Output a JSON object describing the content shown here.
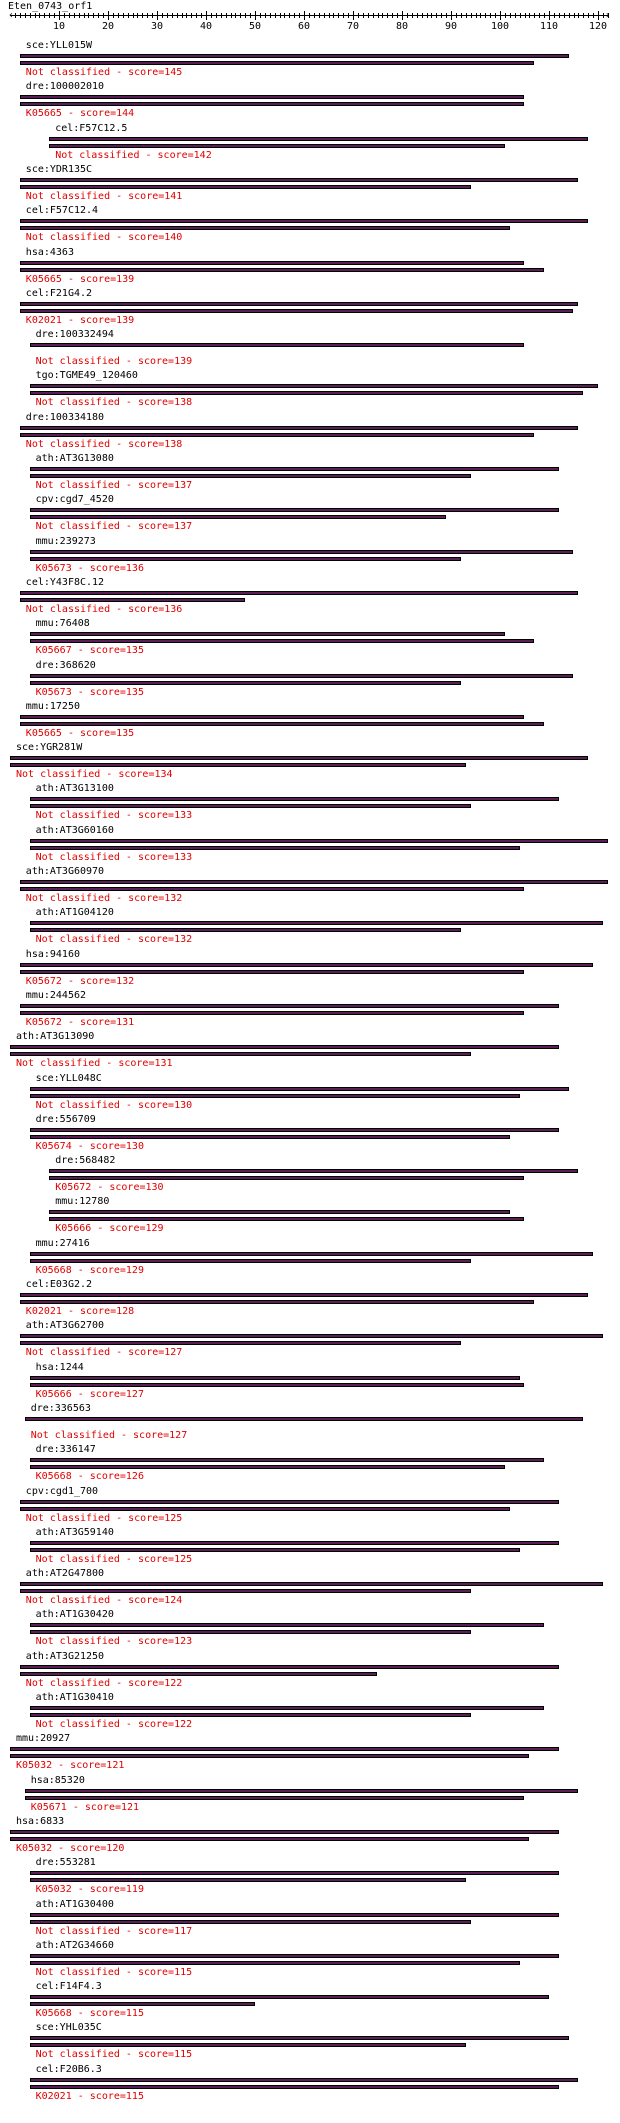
{
  "title": "Eten_0743_orf1",
  "axis": {
    "min": 1,
    "max": 122,
    "labels": [
      10,
      20,
      30,
      40,
      50,
      60,
      70,
      80,
      90,
      100,
      110,
      120
    ]
  },
  "colors": {
    "bar": "#5a1f55",
    "label": "#000000",
    "classification": "#e00000"
  },
  "hits": [
    {
      "name": "sce:YLL015W",
      "class": "Not classified - score=145",
      "indent": 2,
      "bars": [
        [
          2,
          114
        ],
        [
          2,
          107
        ]
      ]
    },
    {
      "name": "dre:100002010",
      "class": "K05665 - score=144",
      "indent": 2,
      "bars": [
        [
          2,
          105
        ],
        [
          2,
          105
        ]
      ]
    },
    {
      "name": "cel:F57C12.5",
      "class": "Not classified - score=142",
      "indent": 8,
      "bars": [
        [
          8,
          118
        ],
        [
          8,
          101
        ]
      ]
    },
    {
      "name": "sce:YDR135C",
      "class": "Not classified - score=141",
      "indent": 2,
      "bars": [
        [
          2,
          116
        ],
        [
          2,
          94
        ]
      ]
    },
    {
      "name": "cel:F57C12.4",
      "class": "Not classified - score=140",
      "indent": 2,
      "bars": [
        [
          2,
          118
        ],
        [
          2,
          102
        ]
      ]
    },
    {
      "name": "hsa:4363",
      "class": "K05665 - score=139",
      "indent": 2,
      "bars": [
        [
          2,
          105
        ],
        [
          2,
          109
        ]
      ]
    },
    {
      "name": "cel:F21G4.2",
      "class": "K02021 - score=139",
      "indent": 2,
      "bars": [
        [
          2,
          116
        ],
        [
          2,
          115
        ]
      ]
    },
    {
      "name": "dre:100332494",
      "class": "Not classified - score=139",
      "indent": 4,
      "bars": [
        [
          4,
          105
        ]
      ]
    },
    {
      "name": "tgo:TGME49_120460",
      "class": "Not classified - score=138",
      "indent": 4,
      "bars": [
        [
          4,
          120
        ],
        [
          4,
          117
        ]
      ]
    },
    {
      "name": "dre:100334180",
      "class": "Not classified - score=138",
      "indent": 2,
      "bars": [
        [
          2,
          116
        ],
        [
          2,
          107
        ]
      ]
    },
    {
      "name": "ath:AT3G13080",
      "class": "Not classified - score=137",
      "indent": 4,
      "bars": [
        [
          4,
          112
        ],
        [
          4,
          94
        ]
      ]
    },
    {
      "name": "cpv:cgd7_4520",
      "class": "Not classified - score=137",
      "indent": 4,
      "bars": [
        [
          4,
          112
        ],
        [
          4,
          89
        ]
      ]
    },
    {
      "name": "mmu:239273",
      "class": "K05673 - score=136",
      "indent": 4,
      "bars": [
        [
          4,
          115
        ],
        [
          4,
          92
        ]
      ]
    },
    {
      "name": "cel:Y43F8C.12",
      "class": "Not classified - score=136",
      "indent": 2,
      "bars": [
        [
          2,
          116
        ],
        [
          2,
          48
        ]
      ]
    },
    {
      "name": "mmu:76408",
      "class": "K05667 - score=135",
      "indent": 4,
      "bars": [
        [
          4,
          101
        ],
        [
          4,
          107
        ]
      ]
    },
    {
      "name": "dre:368620",
      "class": "K05673 - score=135",
      "indent": 4,
      "bars": [
        [
          4,
          115
        ],
        [
          4,
          92
        ]
      ]
    },
    {
      "name": "mmu:17250",
      "class": "K05665 - score=135",
      "indent": 2,
      "bars": [
        [
          2,
          105
        ],
        [
          2,
          109
        ]
      ]
    },
    {
      "name": "sce:YGR281W",
      "class": "Not classified - score=134",
      "indent": 0,
      "bars": [
        [
          0,
          118
        ],
        [
          0,
          93
        ]
      ]
    },
    {
      "name": "ath:AT3G13100",
      "class": "Not classified - score=133",
      "indent": 4,
      "bars": [
        [
          4,
          112
        ],
        [
          4,
          94
        ]
      ]
    },
    {
      "name": "ath:AT3G60160",
      "class": "Not classified - score=133",
      "indent": 4,
      "bars": [
        [
          4,
          122
        ],
        [
          4,
          104
        ]
      ]
    },
    {
      "name": "ath:AT3G60970",
      "class": "Not classified - score=132",
      "indent": 2,
      "bars": [
        [
          2,
          122
        ],
        [
          2,
          105
        ]
      ]
    },
    {
      "name": "ath:AT1G04120",
      "class": "Not classified - score=132",
      "indent": 4,
      "bars": [
        [
          4,
          121
        ],
        [
          4,
          92
        ]
      ]
    },
    {
      "name": "hsa:94160",
      "class": "K05672 - score=132",
      "indent": 2,
      "bars": [
        [
          2,
          119
        ],
        [
          2,
          105
        ]
      ]
    },
    {
      "name": "mmu:244562",
      "class": "K05672 - score=131",
      "indent": 2,
      "bars": [
        [
          2,
          112
        ],
        [
          2,
          105
        ]
      ]
    },
    {
      "name": "ath:AT3G13090",
      "class": "Not classified - score=131",
      "indent": 0,
      "bars": [
        [
          0,
          112
        ],
        [
          0,
          94
        ]
      ]
    },
    {
      "name": "sce:YLL048C",
      "class": "Not classified - score=130",
      "indent": 4,
      "bars": [
        [
          4,
          114
        ],
        [
          4,
          104
        ]
      ]
    },
    {
      "name": "dre:556709",
      "class": "K05674 - score=130",
      "indent": 4,
      "bars": [
        [
          4,
          112
        ],
        [
          4,
          102
        ]
      ]
    },
    {
      "name": "dre:568482",
      "class": "K05672 - score=130",
      "indent": 8,
      "bars": [
        [
          8,
          116
        ],
        [
          8,
          105
        ]
      ]
    },
    {
      "name": "mmu:12780",
      "class": "K05666 - score=129",
      "indent": 8,
      "bars": [
        [
          8,
          102
        ],
        [
          8,
          105
        ]
      ]
    },
    {
      "name": "mmu:27416",
      "class": "K05668 - score=129",
      "indent": 4,
      "bars": [
        [
          4,
          119
        ],
        [
          4,
          94
        ]
      ]
    },
    {
      "name": "cel:E03G2.2",
      "class": "K02021 - score=128",
      "indent": 2,
      "bars": [
        [
          2,
          118
        ],
        [
          2,
          107
        ]
      ]
    },
    {
      "name": "ath:AT3G62700",
      "class": "Not classified - score=127",
      "indent": 2,
      "bars": [
        [
          2,
          121
        ],
        [
          2,
          92
        ]
      ]
    },
    {
      "name": "hsa:1244",
      "class": "K05666 - score=127",
      "indent": 4,
      "bars": [
        [
          4,
          104
        ],
        [
          4,
          105
        ]
      ]
    },
    {
      "name": "dre:336563",
      "class": "Not classified - score=127",
      "indent": 3,
      "bars": [
        [
          3,
          117
        ]
      ]
    },
    {
      "name": "dre:336147",
      "class": "K05668 - score=126",
      "indent": 4,
      "bars": [
        [
          4,
          109
        ],
        [
          4,
          101
        ]
      ]
    },
    {
      "name": "cpv:cgd1_700",
      "class": "Not classified - score=125",
      "indent": 2,
      "bars": [
        [
          2,
          112
        ],
        [
          2,
          102
        ]
      ]
    },
    {
      "name": "ath:AT3G59140",
      "class": "Not classified - score=125",
      "indent": 4,
      "bars": [
        [
          4,
          112
        ],
        [
          4,
          104
        ]
      ]
    },
    {
      "name": "ath:AT2G47800",
      "class": "Not classified - score=124",
      "indent": 2,
      "bars": [
        [
          2,
          121
        ],
        [
          2,
          94
        ]
      ]
    },
    {
      "name": "ath:AT1G30420",
      "class": "Not classified - score=123",
      "indent": 4,
      "bars": [
        [
          4,
          109
        ],
        [
          4,
          94
        ]
      ]
    },
    {
      "name": "ath:AT3G21250",
      "class": "Not classified - score=122",
      "indent": 2,
      "bars": [
        [
          2,
          112
        ],
        [
          2,
          75
        ]
      ]
    },
    {
      "name": "ath:AT1G30410",
      "class": "Not classified - score=122",
      "indent": 4,
      "bars": [
        [
          4,
          109
        ],
        [
          4,
          94
        ]
      ]
    },
    {
      "name": "mmu:20927",
      "class": "K05032 - score=121",
      "indent": 0,
      "bars": [
        [
          0,
          112
        ],
        [
          0,
          106
        ]
      ]
    },
    {
      "name": "hsa:85320",
      "class": "K05671 - score=121",
      "indent": 3,
      "bars": [
        [
          3,
          116
        ],
        [
          3,
          105
        ]
      ]
    },
    {
      "name": "hsa:6833",
      "class": "K05032 - score=120",
      "indent": 0,
      "bars": [
        [
          0,
          112
        ],
        [
          0,
          106
        ]
      ]
    },
    {
      "name": "dre:553281",
      "class": "K05032 - score=119",
      "indent": 4,
      "bars": [
        [
          4,
          112
        ],
        [
          4,
          93
        ]
      ]
    },
    {
      "name": "ath:AT1G30400",
      "class": "Not classified - score=117",
      "indent": 4,
      "bars": [
        [
          4,
          112
        ],
        [
          4,
          94
        ]
      ]
    },
    {
      "name": "ath:AT2G34660",
      "class": "Not classified - score=115",
      "indent": 4,
      "bars": [
        [
          4,
          112
        ],
        [
          4,
          104
        ]
      ]
    },
    {
      "name": "cel:F14F4.3",
      "class": "K05668 - score=115",
      "indent": 4,
      "bars": [
        [
          4,
          110
        ],
        [
          4,
          50
        ]
      ]
    },
    {
      "name": "sce:YHL035C",
      "class": "Not classified - score=115",
      "indent": 4,
      "bars": [
        [
          4,
          114
        ],
        [
          4,
          93
        ]
      ]
    },
    {
      "name": "cel:F20B6.3",
      "class": "K02021 - score=115",
      "indent": 4,
      "bars": [
        [
          4,
          116
        ],
        [
          4,
          112
        ]
      ]
    }
  ]
}
